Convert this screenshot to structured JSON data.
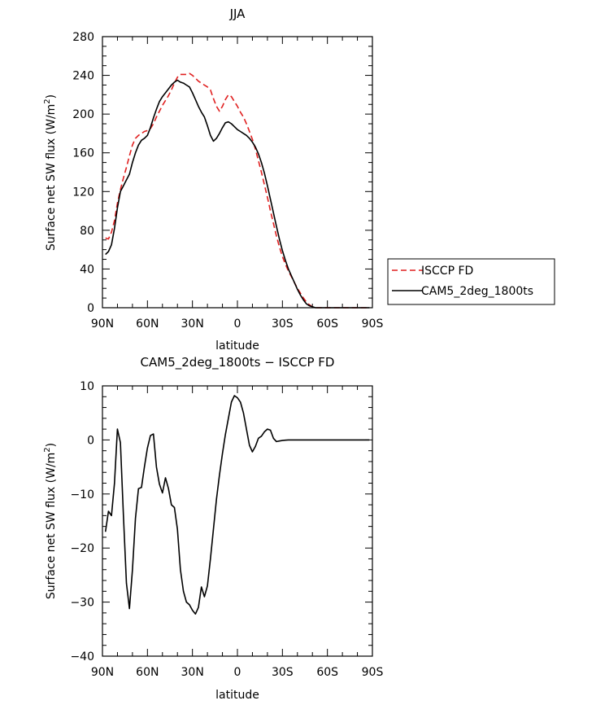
{
  "chart_data": [
    {
      "type": "line",
      "title": "JJA",
      "xlabel": "latitude",
      "ylabel_main": "Surface net SW flux (W/m",
      "ylabel_sup": "2",
      "ylabel_end": ")",
      "xlim": [
        90,
        -90
      ],
      "ylim": [
        0,
        280
      ],
      "x_ticks": [
        90,
        60,
        30,
        0,
        -30,
        -60,
        -90
      ],
      "x_tick_labels": [
        "90N",
        "60N",
        "30N",
        "0",
        "30S",
        "60S",
        "90S"
      ],
      "y_ticks": [
        0,
        40,
        80,
        120,
        160,
        200,
        240,
        280
      ],
      "y_tick_labels": [
        "0",
        "40",
        "80",
        "120",
        "160",
        "200",
        "240",
        "280"
      ],
      "legend": "outside-right",
      "series": [
        {
          "name": "ISCCP FD",
          "color": "#e02020",
          "dash": true,
          "x": [
            88,
            86,
            84,
            82,
            80,
            78,
            76,
            74,
            72,
            70,
            68,
            66,
            64,
            62,
            60,
            58,
            56,
            54,
            52,
            50,
            48,
            46,
            44,
            42,
            40,
            38,
            36,
            34,
            32,
            30,
            28,
            26,
            24,
            22,
            20,
            18,
            16,
            14,
            12,
            10,
            8,
            6,
            4,
            2,
            0,
            -2,
            -4,
            -6,
            -8,
            -10,
            -12,
            -14,
            -16,
            -18,
            -20,
            -22,
            -24,
            -26,
            -28,
            -30,
            -32,
            -34,
            -36,
            -38,
            -40,
            -42,
            -44,
            -46,
            -48,
            -50,
            -52,
            -54,
            -56,
            -58,
            -60,
            -62,
            -64,
            -66,
            -68,
            -70,
            -72,
            -74,
            -76,
            -78,
            -80,
            -82,
            -84,
            -86,
            -88
          ],
          "y": [
            72,
            71,
            78,
            90,
            108,
            122,
            134,
            145,
            157,
            168,
            175,
            178,
            180,
            182,
            183,
            185,
            190,
            197,
            203,
            209,
            214,
            219,
            225,
            232,
            238,
            241,
            241,
            241,
            242,
            240,
            237,
            234,
            232,
            230,
            228,
            225,
            216,
            208,
            203,
            208,
            215,
            220,
            218,
            213,
            208,
            202,
            197,
            190,
            182,
            174,
            164,
            152,
            140,
            127,
            114,
            100,
            87,
            74,
            63,
            53,
            45,
            38,
            32,
            26,
            20,
            15,
            10,
            6,
            3,
            1,
            0,
            0,
            0,
            0,
            0,
            0,
            0,
            0,
            0,
            0,
            0,
            0,
            0,
            0,
            0,
            0,
            0,
            0,
            0
          ]
        },
        {
          "name": "CAM5_2deg_1800ts",
          "color": "#000000",
          "dash": false,
          "x": [
            88,
            86,
            84,
            82,
            80,
            78,
            76,
            74,
            72,
            70,
            68,
            66,
            64,
            62,
            60,
            58,
            56,
            54,
            52,
            50,
            48,
            46,
            44,
            42,
            40,
            38,
            36,
            34,
            32,
            30,
            28,
            26,
            24,
            22,
            20,
            18,
            16,
            14,
            12,
            10,
            8,
            6,
            4,
            2,
            0,
            -2,
            -4,
            -6,
            -8,
            -10,
            -12,
            -14,
            -16,
            -18,
            -20,
            -22,
            -24,
            -26,
            -28,
            -30,
            -32,
            -34,
            -36,
            -38,
            -40,
            -42,
            -44,
            -46,
            -48,
            -50,
            -52,
            -54,
            -56,
            -58,
            -60,
            -62,
            -64,
            -66,
            -68,
            -70,
            -72,
            -74,
            -76,
            -78,
            -80,
            -82,
            -84,
            -86,
            -88
          ],
          "y": [
            55,
            58,
            65,
            82,
            103,
            120,
            126,
            132,
            138,
            150,
            160,
            168,
            173,
            175,
            178,
            186,
            196,
            205,
            213,
            218,
            222,
            226,
            230,
            233,
            235,
            233,
            232,
            230,
            228,
            222,
            215,
            208,
            202,
            197,
            188,
            178,
            172,
            175,
            180,
            186,
            191,
            192,
            190,
            187,
            184,
            182,
            180,
            178,
            175,
            171,
            166,
            159,
            150,
            139,
            126,
            112,
            98,
            84,
            71,
            59,
            49,
            40,
            33,
            26,
            19,
            13,
            8,
            4,
            2,
            1,
            0,
            0,
            0,
            0,
            0,
            0,
            0,
            0,
            0,
            0,
            0,
            0,
            0,
            0,
            0,
            0,
            0,
            0,
            0
          ]
        }
      ]
    },
    {
      "type": "line",
      "title": "CAM5_2deg_1800ts − ISCCP FD",
      "xlabel": "latitude",
      "ylabel_main": "Surface net SW flux (W/m",
      "ylabel_sup": "2",
      "ylabel_end": ")",
      "xlim": [
        90,
        -90
      ],
      "ylim": [
        -40,
        10
      ],
      "x_ticks": [
        90,
        60,
        30,
        0,
        -30,
        -60,
        -90
      ],
      "x_tick_labels": [
        "90N",
        "60N",
        "30N",
        "0",
        "30S",
        "60S",
        "90S"
      ],
      "y_ticks": [
        -40,
        -30,
        -20,
        -10,
        0,
        10
      ],
      "y_tick_labels": [
        "−40",
        "−30",
        "−20",
        "−10",
        "0",
        "10"
      ],
      "series": [
        {
          "color": "#000000",
          "dash": false,
          "x": [
            88,
            86,
            84,
            82,
            80,
            78,
            76,
            74,
            72,
            70,
            68,
            66,
            64,
            62,
            60,
            58,
            56,
            54,
            52,
            50,
            48,
            46,
            44,
            42,
            40,
            38,
            36,
            34,
            32,
            30,
            28,
            26,
            24,
            22,
            20,
            18,
            16,
            14,
            12,
            10,
            8,
            6,
            4,
            2,
            0,
            -2,
            -4,
            -6,
            -8,
            -10,
            -12,
            -14,
            -16,
            -18,
            -20,
            -22,
            -24,
            -26,
            -28,
            -30,
            -32,
            -34,
            -36,
            -38,
            -40,
            -42,
            -44,
            -46,
            -48,
            -50,
            -52,
            -54,
            -56,
            -58,
            -60,
            -62,
            -64,
            -66,
            -68,
            -70,
            -72,
            -74,
            -76,
            -78,
            -80,
            -82,
            -84,
            -86,
            -88
          ],
          "y": [
            -17,
            -13.2,
            -14,
            -8,
            2,
            -0.5,
            -14,
            -26.5,
            -31.2,
            -24,
            -14.5,
            -9,
            -8.8,
            -5,
            -1.5,
            0.8,
            1.1,
            -5,
            -8.2,
            -9.8,
            -7,
            -9,
            -12,
            -12.5,
            -16.5,
            -24,
            -28,
            -30,
            -30.5,
            -31.5,
            -32.2,
            -31,
            -27.2,
            -29,
            -27,
            -22,
            -16.5,
            -11,
            -6.5,
            -2.5,
            1,
            4,
            7,
            8.2,
            7.8,
            7,
            5,
            2,
            -1,
            -2.2,
            -1.2,
            0.3,
            0.7,
            1.5,
            2,
            1.8,
            0.3,
            -0.3,
            -0.2,
            -0.1,
            -0.05,
            0,
            0,
            0,
            0,
            0,
            0,
            0,
            0,
            0,
            0,
            0,
            0,
            0,
            0,
            0,
            0,
            0,
            0,
            0,
            0,
            0,
            0,
            0,
            0,
            0,
            0,
            0,
            0
          ]
        }
      ]
    }
  ]
}
